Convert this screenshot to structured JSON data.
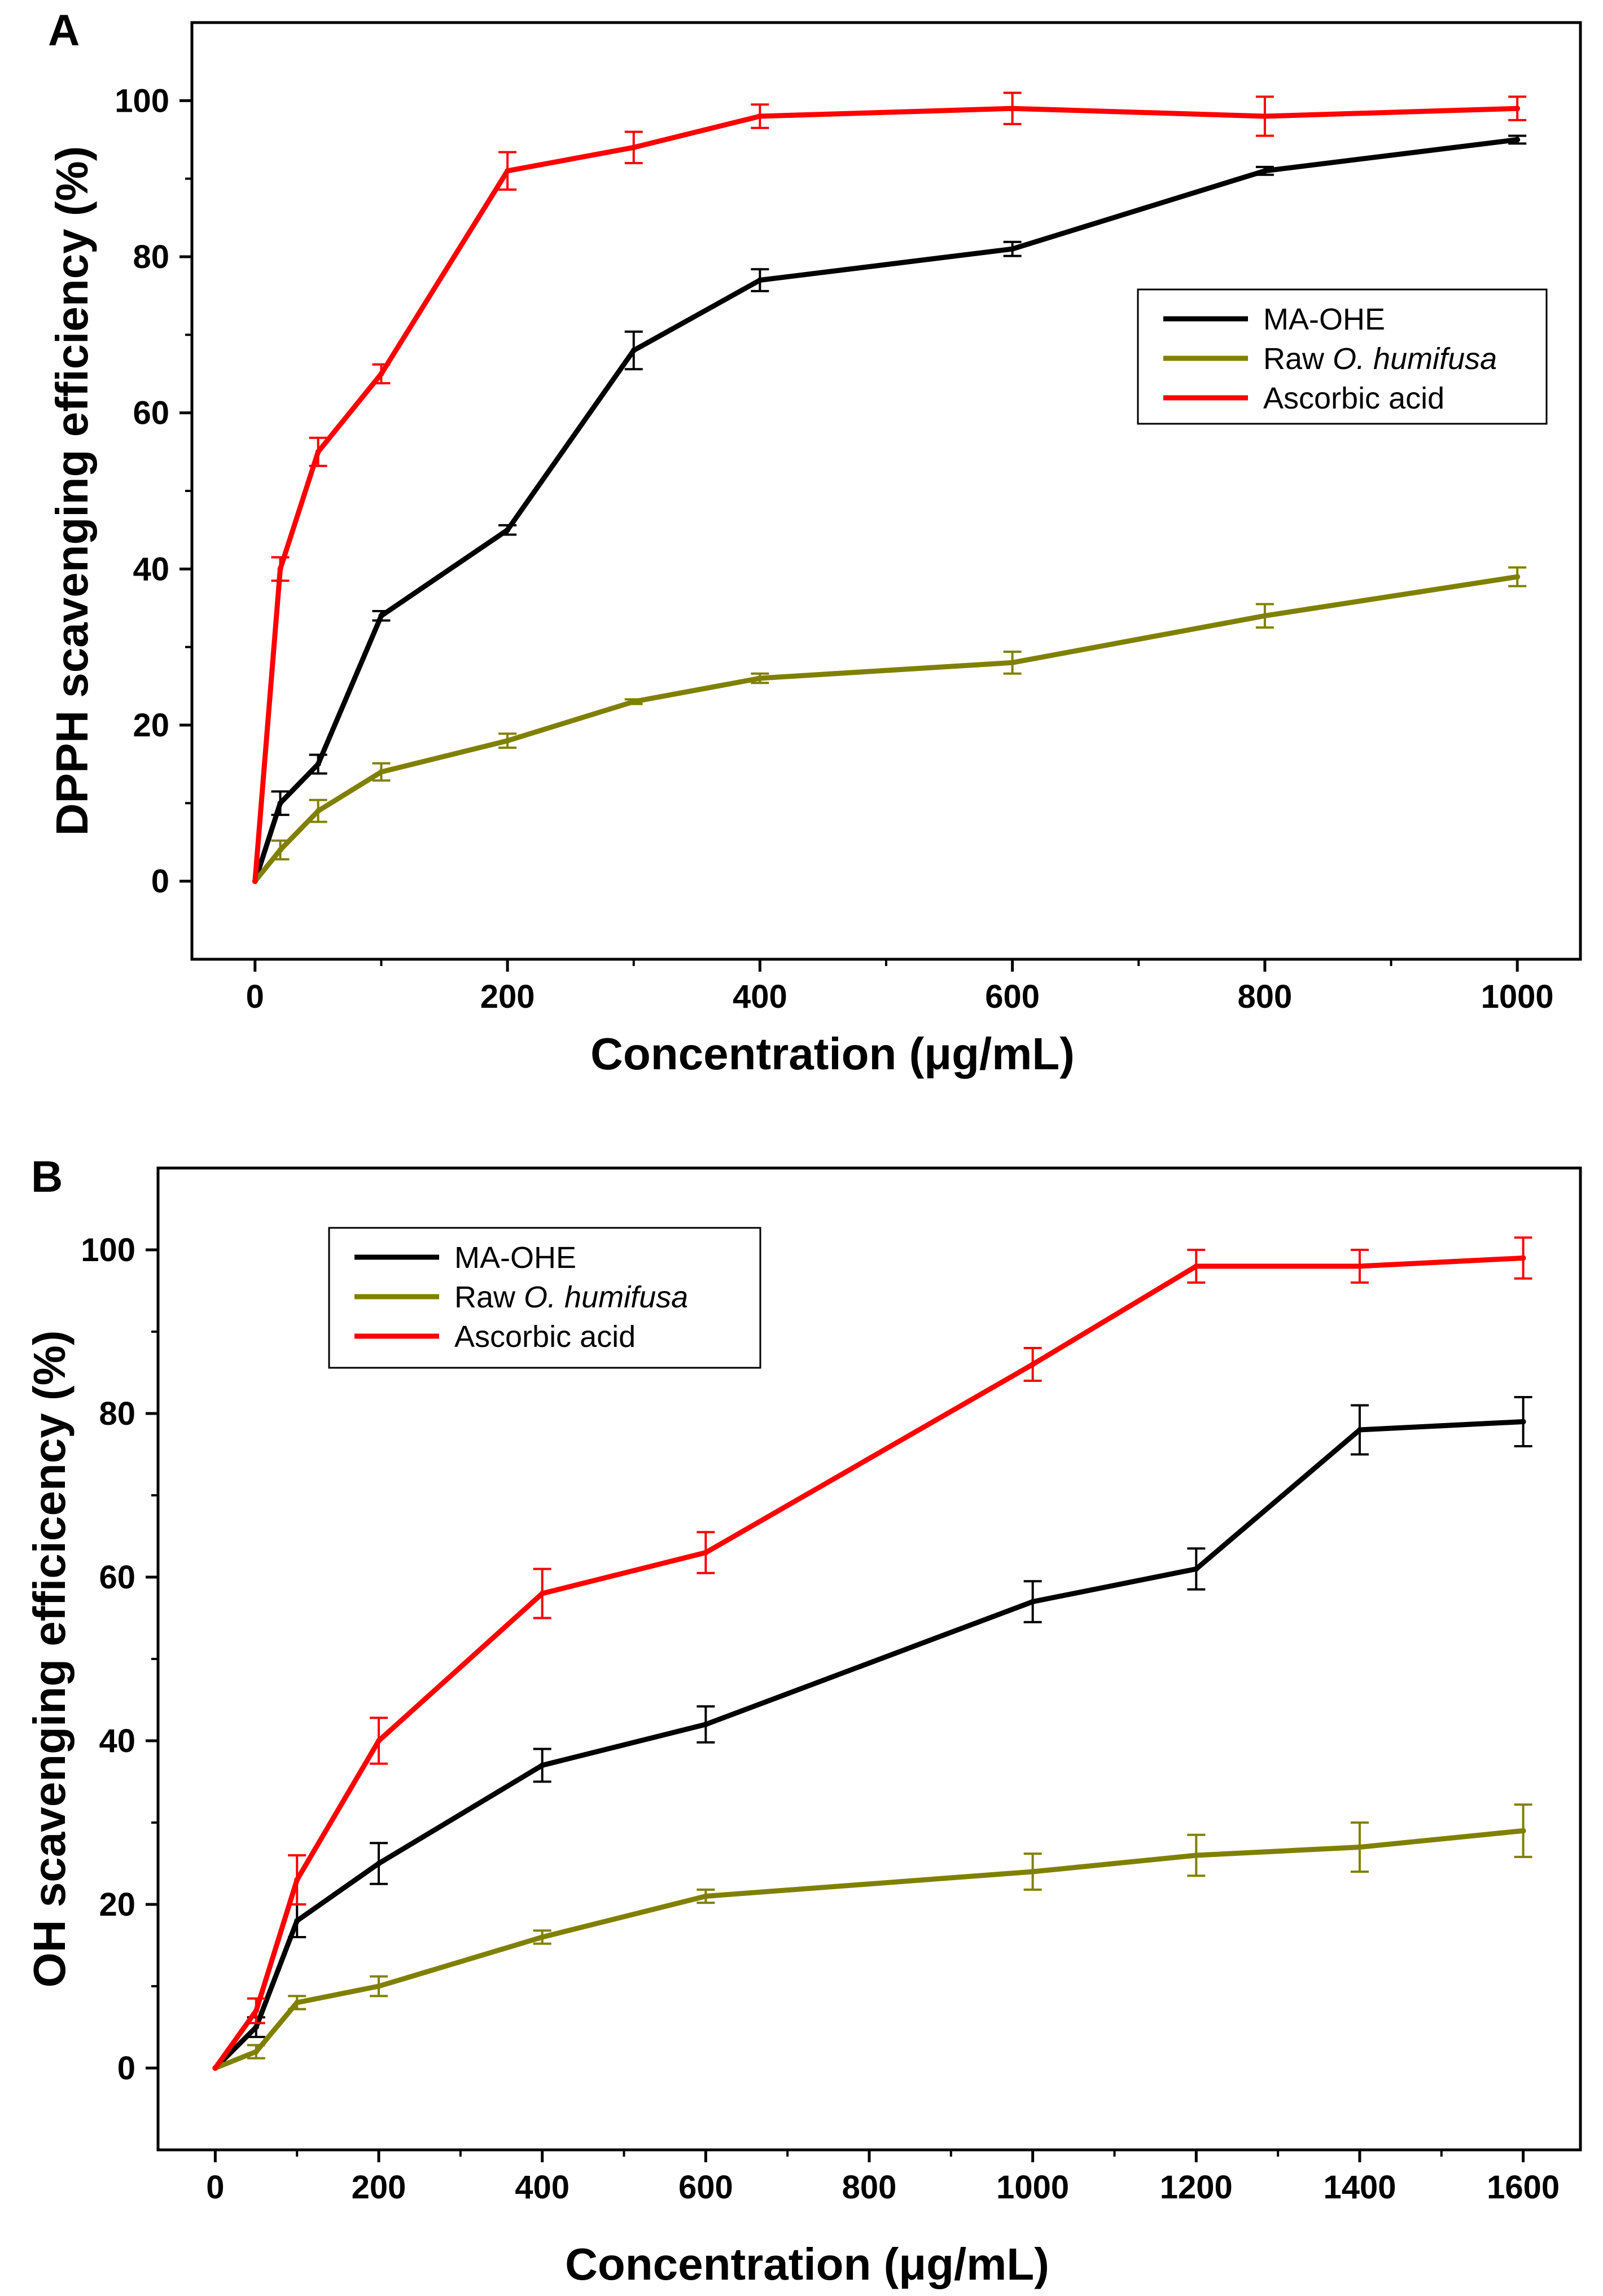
{
  "chart_data": [
    {
      "type": "line",
      "panel_label": "A",
      "xlabel": "Concentration (μg/mL)",
      "ylabel": "DPPH scavenging efficiency (%)",
      "xlim": [
        -50,
        1050
      ],
      "ylim": [
        -10,
        110
      ],
      "xticks": [
        0,
        200,
        400,
        600,
        800,
        1000
      ],
      "yticks": [
        0,
        20,
        40,
        60,
        80,
        100
      ],
      "legend_position": "upper-right",
      "grid": false,
      "series": [
        {
          "name": "MA-OHE",
          "legend_parts": [
            "MA-OHE"
          ],
          "color": "#000000",
          "x": [
            0,
            20,
            50,
            100,
            200,
            300,
            400,
            600,
            800,
            1000
          ],
          "y": [
            0,
            10,
            15,
            34,
            45,
            68,
            77,
            81,
            91,
            95
          ],
          "err": [
            0,
            1.5,
            1.2,
            0.6,
            0.6,
            2.4,
            1.4,
            0.9,
            0.5,
            0.5
          ]
        },
        {
          "name": "Raw O. humifusa",
          "legend_parts": [
            "Raw ",
            "O. humifusa"
          ],
          "color": "#808000",
          "x": [
            0,
            20,
            50,
            100,
            200,
            300,
            400,
            600,
            800,
            1000
          ],
          "y": [
            0,
            4,
            9,
            14,
            18,
            23,
            26,
            28,
            34,
            39
          ],
          "err": [
            0,
            1.2,
            1.4,
            1.1,
            0.9,
            0.3,
            0.6,
            1.4,
            1.5,
            1.2
          ]
        },
        {
          "name": "Ascorbic acid",
          "legend_parts": [
            "Ascorbic acid"
          ],
          "color": "#ff0000",
          "x": [
            0,
            20,
            50,
            100,
            200,
            300,
            400,
            600,
            800,
            1000
          ],
          "y": [
            0,
            40,
            55,
            65,
            91,
            94,
            98,
            99,
            98,
            99
          ],
          "err": [
            0,
            1.5,
            1.8,
            1.2,
            2.4,
            2.0,
            1.5,
            2.0,
            2.5,
            1.5
          ]
        }
      ]
    },
    {
      "type": "line",
      "panel_label": "B",
      "xlabel": "Concentration (μg/mL)",
      "ylabel": "OH scavenging efficicency (%)",
      "xlim": [
        -70,
        1670
      ],
      "ylim": [
        -10,
        110
      ],
      "xticks": [
        0,
        200,
        400,
        600,
        800,
        1000,
        1200,
        1400,
        1600
      ],
      "yticks": [
        0,
        20,
        40,
        60,
        80,
        100
      ],
      "legend_position": "upper-left",
      "grid": false,
      "series": [
        {
          "name": "MA-OHE",
          "legend_parts": [
            "MA-OHE"
          ],
          "color": "#000000",
          "x": [
            0,
            50,
            100,
            200,
            400,
            600,
            1000,
            1200,
            1400,
            1600
          ],
          "y": [
            0,
            5,
            18,
            25,
            37,
            42,
            57,
            61,
            78,
            79
          ],
          "err": [
            0,
            1.2,
            2.0,
            2.5,
            2.0,
            2.2,
            2.5,
            2.5,
            3.0,
            3.0
          ]
        },
        {
          "name": "Raw O. humifusa",
          "legend_parts": [
            "Raw ",
            "O. humifusa"
          ],
          "color": "#808000",
          "x": [
            0,
            50,
            100,
            200,
            400,
            600,
            1000,
            1200,
            1400,
            1600
          ],
          "y": [
            0,
            2,
            8,
            10,
            16,
            21,
            24,
            26,
            27,
            29
          ],
          "err": [
            0,
            0.8,
            0.8,
            1.2,
            0.8,
            0.8,
            2.2,
            2.5,
            3.0,
            3.2
          ]
        },
        {
          "name": "Ascorbic acid",
          "legend_parts": [
            "Ascorbic acid"
          ],
          "color": "#ff0000",
          "x": [
            0,
            50,
            100,
            200,
            400,
            600,
            1000,
            1200,
            1400,
            1600
          ],
          "y": [
            0,
            7,
            23,
            40,
            58,
            63,
            86,
            98,
            98,
            99
          ],
          "err": [
            0,
            1.5,
            3.0,
            2.8,
            3.0,
            2.5,
            2.0,
            2.0,
            2.0,
            2.5
          ]
        }
      ]
    }
  ]
}
